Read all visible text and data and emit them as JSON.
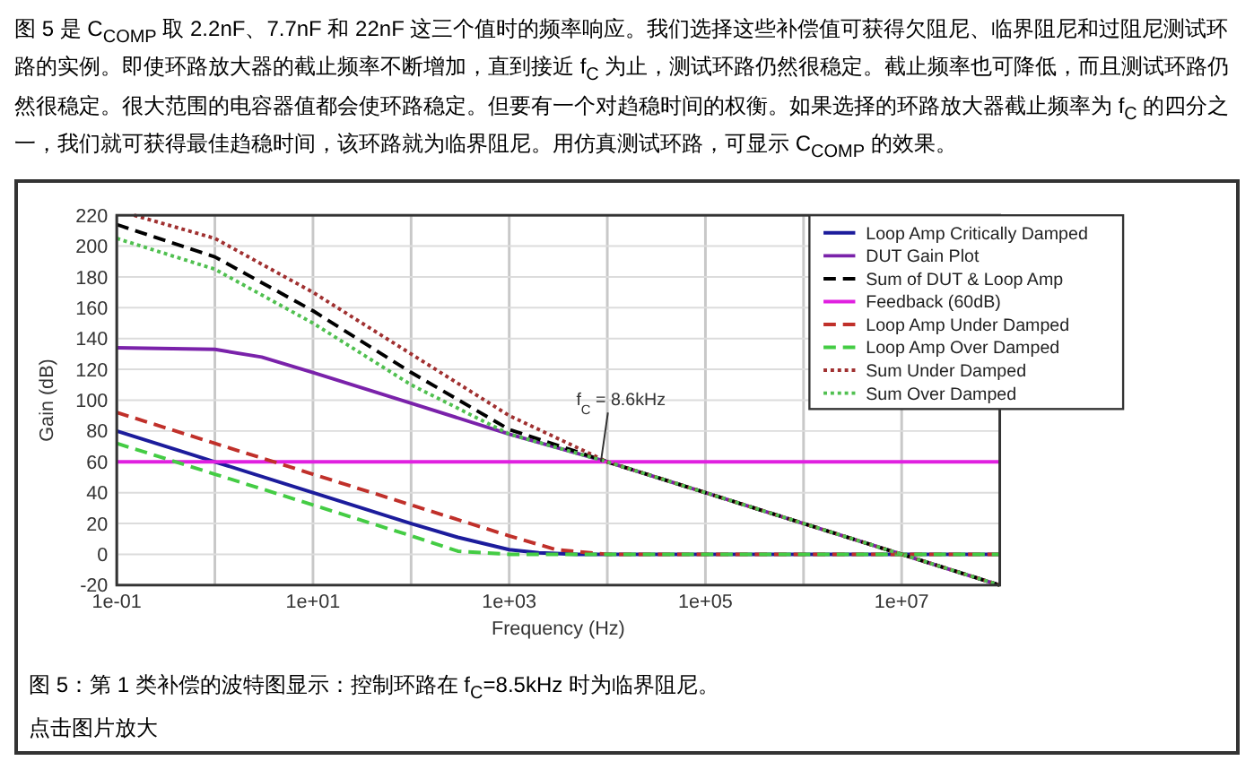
{
  "chart_data": {
    "type": "line",
    "xlabel": "Frequency (Hz)",
    "ylabel": "Gain (dB)",
    "log": "x",
    "xlim": [
      0.1,
      100000000
    ],
    "ylim": [
      -20,
      220
    ],
    "xticks": [
      {
        "value": 0.1,
        "label": "1e-01"
      },
      {
        "value": 1,
        "label": null
      },
      {
        "value": 10,
        "label": "1e+01"
      },
      {
        "value": 100,
        "label": null
      },
      {
        "value": 1000,
        "label": "1e+03"
      },
      {
        "value": 10000,
        "label": null
      },
      {
        "value": 100000,
        "label": "1e+05"
      },
      {
        "value": 1000000,
        "label": null
      },
      {
        "value": 10000000,
        "label": "1e+07"
      }
    ],
    "yticks": [
      -20,
      0,
      20,
      40,
      60,
      80,
      100,
      120,
      140,
      160,
      180,
      200,
      220
    ],
    "grid": true,
    "legend": "top right",
    "series": [
      {
        "name": "Loop Amp Critically Damped",
        "color": "#1c1c9c",
        "line_style": "solid",
        "x": [
          0.1,
          1,
          10,
          100,
          300,
          1000,
          2000,
          5000,
          100000000
        ],
        "values": [
          80,
          60,
          40,
          20,
          11,
          3,
          1,
          0,
          0
        ]
      },
      {
        "name": "DUT Gain Plot",
        "color": "#7a22aa",
        "line_style": "solid",
        "x": [
          0.1,
          1,
          3,
          10,
          100,
          1000,
          10000,
          100000,
          1000000,
          10000000,
          100000000
        ],
        "values": [
          134,
          133,
          128,
          118,
          98,
          78,
          60,
          40,
          20,
          0,
          -20
        ]
      },
      {
        "name": "Sum of DUT & Loop Amp",
        "color": "#000000",
        "line_style": "dashed",
        "x": [
          0.1,
          1,
          10,
          100,
          1000,
          10000,
          100000,
          1000000,
          10000000,
          100000000
        ],
        "values": [
          214,
          193,
          158,
          118,
          81,
          60,
          40,
          20,
          0,
          -20
        ]
      },
      {
        "name": "Feedback (60dB)",
        "color": "#e020e0",
        "line_style": "solid",
        "x": [
          0.1,
          100000000
        ],
        "values": [
          60,
          60
        ]
      },
      {
        "name": "Loop Amp Under Damped",
        "color": "#c0302a",
        "line_style": "dashed",
        "x": [
          0.1,
          1,
          10,
          100,
          1000,
          3000,
          10000,
          100000000
        ],
        "values": [
          92,
          72,
          52,
          32,
          12,
          3,
          0,
          0
        ]
      },
      {
        "name": "Loop Amp Over Damped",
        "color": "#44cc44",
        "line_style": "dashed",
        "x": [
          0.1,
          1,
          10,
          100,
          300,
          1000,
          100000000
        ],
        "values": [
          72,
          52,
          32,
          12,
          2,
          0,
          0
        ]
      },
      {
        "name": "Sum Under Damped",
        "color": "#a03030",
        "line_style": "dotted",
        "x": [
          0.15,
          1,
          10,
          100,
          1000,
          10000,
          100000,
          1000000,
          10000000,
          100000000
        ],
        "values": [
          220,
          205,
          170,
          130,
          90,
          60,
          40,
          20,
          0,
          -20
        ]
      },
      {
        "name": "Sum Over Damped",
        "color": "#50c050",
        "line_style": "dotted",
        "x": [
          0.1,
          1,
          10,
          100,
          1000,
          10000,
          100000,
          1000000,
          10000000,
          100000000
        ],
        "values": [
          205,
          185,
          150,
          110,
          78,
          60,
          40,
          20,
          0,
          -20
        ]
      }
    ],
    "annotations": [
      "图 5 是 C$_{COMP}$ 取 2.2nF、7.7nF 和 22nF 这三个值时的频率响应。我们选择这些补偿值可获得欠阻尼、临界阻尼和过阻尼测试环路的实例。即使环路放大器的截止频率不断增加，直到接近 f$_{C}$ 为止，测试环路仍然很稳定。截止频率也可降低，而且测试环路仍然很稳定。很大范围的电容器值都会使环路稳定。但要有一个对趋稳时间的权衡。如果选择的环路放大器截止频率为 f$_{C}$ 的四分之一，我们就可获得最佳趋稳时间，该环路就为临界阻尼。用仿真测试环路，可显示 C$_{COMP}$ 的效果。",
      {
        "text": "f$_{C}$ = 8.6kHz",
        "x": 8600,
        "y": 60
      },
      "图 5：第 1 类补偿的波特图显示：控制环路在 f$_{C}$=8.5kHz 时为临界阻尼。",
      "点击图片放大"
    ]
  }
}
